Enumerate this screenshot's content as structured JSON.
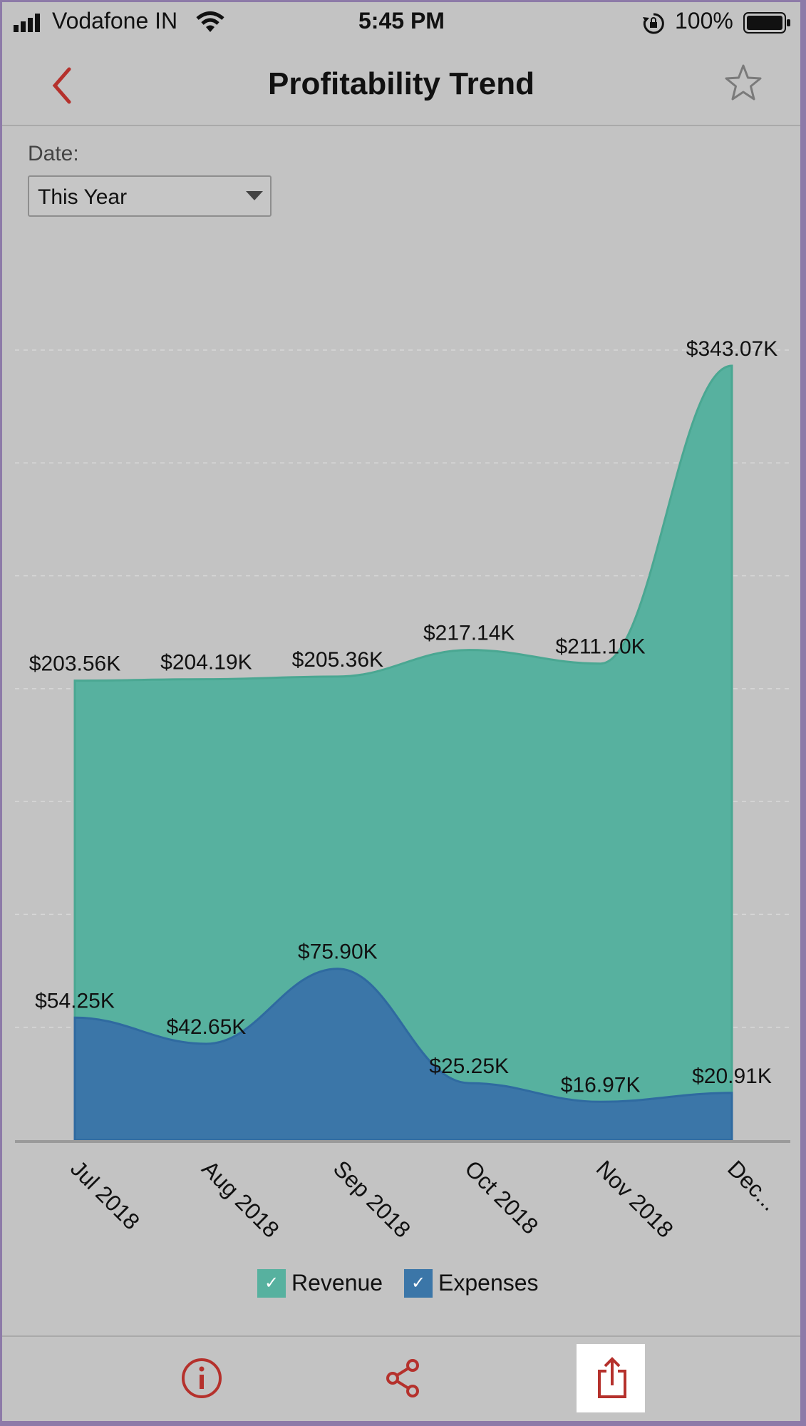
{
  "status_bar": {
    "carrier": "Vodafone IN",
    "time": "5:45 PM",
    "battery": "100%"
  },
  "header": {
    "title": "Profitability Trend",
    "back_icon": "chevron-left-icon",
    "favorite_icon": "star-outline-icon"
  },
  "filter": {
    "label": "Date:",
    "selected": "This Year"
  },
  "colors": {
    "revenue": "#57b19f",
    "expenses": "#3b76a8",
    "accent": "#b5312c"
  },
  "chart_data": {
    "type": "area",
    "categories": [
      "Jul 2018",
      "Aug 2018",
      "Sep 2018",
      "Oct 2018",
      "Nov 2018",
      "Dec..."
    ],
    "series": [
      {
        "name": "Revenue",
        "values": [
          203.56,
          204.19,
          205.36,
          217.14,
          211.1,
          343.07
        ],
        "labels": [
          "$203.56K",
          "$204.19K",
          "$205.36K",
          "$217.14K",
          "$211.10K",
          "$343.07K"
        ]
      },
      {
        "name": "Expenses",
        "values": [
          54.25,
          42.65,
          75.9,
          25.25,
          16.97,
          20.91
        ],
        "labels": [
          "$54.25K",
          "$42.65K",
          "$75.90K",
          "$25.25K",
          "$16.97K",
          "$20.91K"
        ]
      }
    ],
    "ylim": [
      0,
      350
    ],
    "grid": true,
    "legend_position": "bottom-center"
  },
  "toolbar": {
    "info_icon": "info-icon",
    "share_icon": "share-icon",
    "export_icon": "export-icon"
  }
}
